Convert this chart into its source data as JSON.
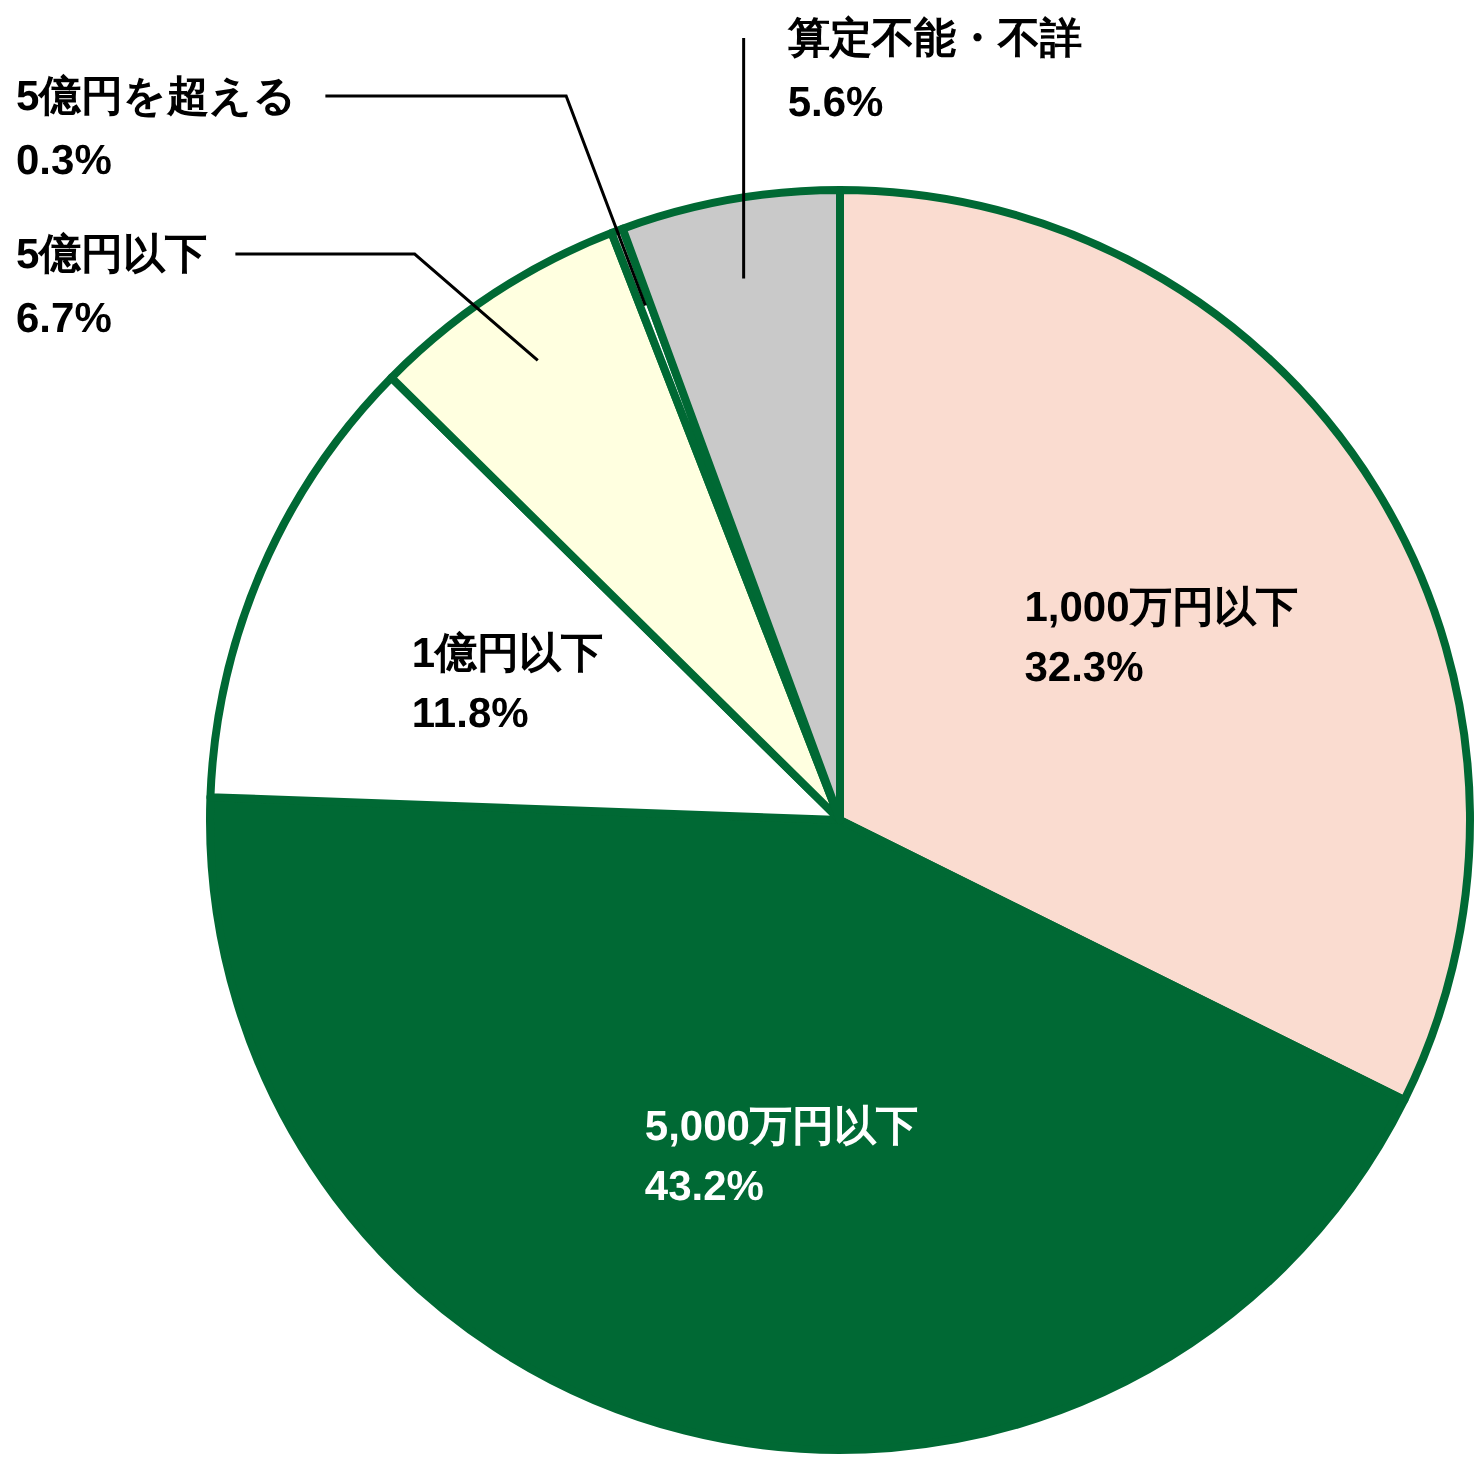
{
  "chart_data": {
    "type": "pie",
    "categories": [
      "1,000万円以下",
      "5,000万円以下",
      "1億円以下",
      "5億円以下",
      "5億円を超える",
      "算定不能・不詳"
    ],
    "values": [
      32.3,
      43.2,
      11.8,
      6.7,
      0.3,
      5.6
    ],
    "colors": [
      "#fadcd0",
      "#006934",
      "#ffffff",
      "#ffffe0",
      "#ffffff",
      "#c9c9c9"
    ],
    "value_labels": [
      "32.3%",
      "43.2%",
      "11.8%",
      "6.7%",
      "0.3%",
      "5.6%"
    ]
  }
}
